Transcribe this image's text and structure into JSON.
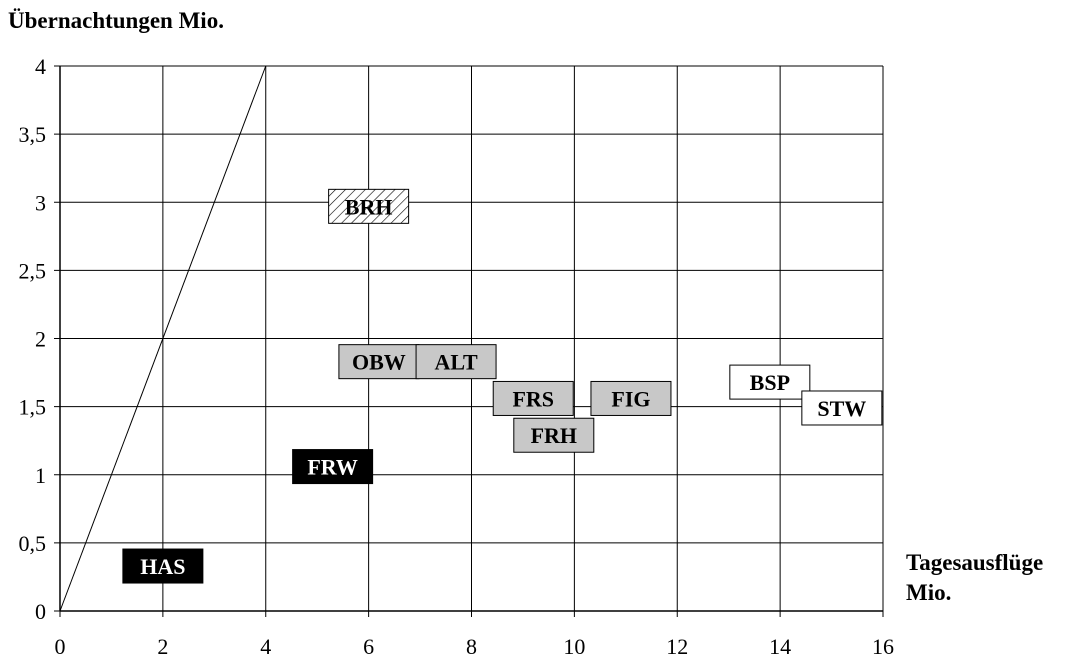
{
  "chart_data": {
    "type": "scatter",
    "title": "Übernachtungen Mio.",
    "xlabel_line1": "Tagesausflüge",
    "xlabel_line2": "Mio.",
    "xlim": [
      0,
      16
    ],
    "ylim": [
      0,
      4
    ],
    "x_ticks": [
      "0",
      "2",
      "4",
      "6",
      "8",
      "10",
      "12",
      "14",
      "16"
    ],
    "y_ticks": [
      "0",
      "0,5",
      "1",
      "1,5",
      "2",
      "2,5",
      "3",
      "3,5",
      "4"
    ],
    "grid": true,
    "reference_line": [
      [
        0,
        0
      ],
      [
        4,
        4
      ]
    ],
    "points": [
      {
        "label": "HAS",
        "x": 2.0,
        "y": 0.33,
        "style": "black"
      },
      {
        "label": "FRW",
        "x": 5.3,
        "y": 1.06,
        "style": "black"
      },
      {
        "label": "BRH",
        "x": 6.0,
        "y": 2.97,
        "style": "hatched"
      },
      {
        "label": "OBW",
        "x": 6.2,
        "y": 1.83,
        "style": "gray"
      },
      {
        "label": "ALT",
        "x": 7.7,
        "y": 1.83,
        "style": "gray"
      },
      {
        "label": "FRS",
        "x": 9.2,
        "y": 1.56,
        "style": "gray"
      },
      {
        "label": "FIG",
        "x": 11.1,
        "y": 1.56,
        "style": "gray"
      },
      {
        "label": "FRH",
        "x": 9.6,
        "y": 1.29,
        "style": "gray"
      },
      {
        "label": "BSP",
        "x": 13.8,
        "y": 1.68,
        "style": "white"
      },
      {
        "label": "STW",
        "x": 15.2,
        "y": 1.49,
        "style": "white"
      }
    ]
  }
}
